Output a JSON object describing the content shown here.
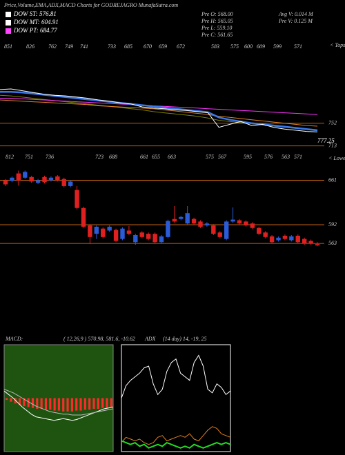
{
  "chart_data": [
    {
      "type": "line",
      "title": "Price,Volume,EMA,ADX,MACD Charts for GODREJAGRO MunafaSutra.com",
      "legend": [
        {
          "label": "DOW ST: 576.81",
          "color": "#ffffff"
        },
        {
          "label": "DOW MT: 604.91",
          "color": "#ffffff"
        },
        {
          "label": "DOW PT: 684.77",
          "color": "#ff44ff"
        }
      ],
      "info": [
        "Pre O: 568.00",
        "Pre H: 565.05",
        "Pre L: 559.10",
        "Pre C: 561.65",
        "Avg V: 0.014 M",
        "Pre V: 0.125 M"
      ],
      "top_labels": [
        851,
        826,
        762,
        749,
        741,
        733,
        685,
        670,
        659,
        672,
        583,
        575,
        600,
        609,
        599,
        571
      ],
      "side_label": "< Tops",
      "ylim": [
        709,
        881
      ],
      "yticks": [
        752,
        713
      ],
      "last_price": 777.25,
      "series": [
        {
          "color": "#808000",
          "values": [
            800,
            799,
            797,
            795,
            793,
            791,
            789,
            787,
            785,
            783,
            781,
            779,
            777,
            775,
            772,
            770,
            768,
            766,
            764,
            761,
            757,
            755,
            753,
            751,
            749,
            747,
            745,
            743,
            741,
            739
          ]
        },
        {
          "color": "#e08020",
          "values": [
            792,
            791,
            790,
            789,
            788,
            787,
            786,
            785,
            784,
            782,
            781,
            780,
            779,
            778,
            777,
            775,
            773,
            771,
            769,
            767,
            764,
            762,
            760,
            758,
            756,
            754,
            752,
            750,
            748,
            747
          ]
        },
        {
          "color": "#ff33ff",
          "values": [
            795,
            795,
            794,
            793,
            792,
            791,
            790,
            789,
            788,
            787,
            786,
            785,
            784,
            783,
            782,
            781,
            780,
            779,
            778,
            777,
            776,
            775,
            774,
            773,
            772,
            771,
            770,
            769,
            768,
            767
          ]
        },
        {
          "color": "#3a78e8",
          "values": [
            806,
            806,
            805,
            803,
            801,
            799,
            797,
            795,
            793,
            791,
            789,
            787,
            785,
            783,
            781,
            779,
            777,
            775,
            773,
            771,
            762,
            758,
            755,
            752,
            750,
            748,
            746,
            744,
            742,
            740
          ]
        },
        {
          "color": "#ffffff",
          "values": [
            810,
            811,
            808,
            805,
            802,
            800,
            799,
            797,
            795,
            792,
            790,
            787,
            785,
            780,
            778,
            777,
            775,
            774,
            772,
            770,
            745,
            750,
            755,
            748,
            750,
            745,
            742,
            740,
            738,
            737
          ]
        }
      ]
    },
    {
      "type": "candlestick",
      "top_labels": [
        812,
        751,
        736,
        723,
        688,
        661,
        655,
        663,
        575,
        567,
        595,
        576,
        563,
        571
      ],
      "side_label": "< Lowes",
      "ylim": [
        545,
        700
      ],
      "yticks": [
        661,
        592,
        563
      ],
      "up_color": "#2a5bd8",
      "down_color": "#e02020",
      "open": [
        661,
        660,
        671.6,
        665,
        666,
        657,
        666,
        661,
        667,
        663,
        652,
        646,
        618,
        591,
        578,
        586,
        583,
        584,
        570,
        583,
        565,
        580,
        578,
        578,
        565,
        573,
        601,
        601,
        594,
        601,
        597,
        591,
        591,
        580,
        570,
        597,
        599,
        597,
        594,
        587,
        580,
        574,
        568,
        575,
        568,
        575,
        570,
        567,
        562
      ],
      "high": [
        663,
        667,
        676,
        676,
        668,
        663,
        668,
        667,
        669,
        665,
        661,
        652,
        620,
        593,
        591,
        588,
        591,
        586,
        588,
        590,
        578,
        582,
        580,
        580,
        576,
        600,
        621,
        606,
        621,
        603,
        599,
        596,
        593,
        582,
        599,
        619,
        601,
        599,
        596,
        589,
        582,
        576,
        574,
        577,
        576,
        577,
        572,
        569,
        565
      ],
      "low": [
        652,
        658,
        652.5,
        663,
        657,
        655,
        656,
        659,
        659,
        650,
        650,
        616,
        587,
        562,
        570,
        571,
        581,
        565,
        568,
        576,
        561,
        571,
        568,
        563,
        563,
        571,
        595,
        599,
        592,
        592,
        587,
        589,
        576,
        571,
        568,
        595,
        592,
        589,
        585,
        576,
        571,
        563,
        566,
        568,
        566,
        563,
        561,
        561,
        559
      ],
      "close": [
        654.6,
        665,
        661,
        674,
        659,
        661,
        658,
        665,
        661,
        652,
        659,
        618,
        589,
        573,
        589,
        573,
        589,
        567,
        586,
        578,
        576,
        573,
        570,
        565,
        574,
        598,
        597,
        604,
        610,
        594,
        589,
        594,
        578,
        573,
        597,
        600,
        594,
        591,
        587,
        578,
        573,
        565,
        572,
        570,
        574,
        565,
        563,
        563,
        560
      ]
    },
    {
      "type": "macd",
      "title": "MACD:",
      "subtitle": "( 12,26,9 ) 570.98, 581.6, -10.62",
      "ylim": [
        -60,
        60
      ],
      "background": "#1e5410",
      "histogram": {
        "color": "#ff2a2a",
        "values": [
          -2,
          -4,
          -6,
          -8,
          -9,
          -10,
          -11,
          -12,
          -12,
          -13,
          -13,
          -14,
          -14,
          -15,
          -15,
          -15,
          -14,
          -14,
          -13,
          -13,
          -12,
          -12,
          -11,
          -11,
          -10
        ]
      },
      "series": [
        {
          "color": "#ffffff",
          "values": [
            8,
            4,
            0,
            -5,
            -10,
            -14,
            -18,
            -21,
            -22,
            -23,
            -24,
            -25,
            -24,
            -23,
            -24,
            -25,
            -24,
            -22,
            -20,
            -18,
            -16,
            -14,
            -12,
            -11,
            -10
          ]
        },
        {
          "color": "#bbbbbb",
          "values": [
            10,
            8,
            6,
            3,
            0,
            -3,
            -6,
            -9,
            -11,
            -13,
            -15,
            -16,
            -17,
            -18,
            -18,
            -19,
            -19,
            -19,
            -18,
            -17,
            -16,
            -15,
            -14,
            -13,
            -12
          ]
        }
      ]
    },
    {
      "type": "adx",
      "title": "ADX",
      "subtitle": "(14  day) 14,  -19,  25",
      "ylim": [
        0,
        60
      ],
      "background": "#000000",
      "series": [
        {
          "color": "#ffffff",
          "values": [
            30,
            37,
            40,
            42,
            44,
            47,
            48,
            38,
            32,
            35,
            45,
            50,
            52,
            44,
            42,
            40,
            50,
            54,
            48,
            35,
            33,
            38,
            36,
            32,
            34
          ]
        },
        {
          "color": "#e08020",
          "values": [
            5,
            8,
            7,
            6,
            7,
            5,
            4,
            5,
            8,
            9,
            6,
            7,
            8,
            9,
            8,
            10,
            7,
            6,
            9,
            12,
            14,
            13,
            10,
            9,
            8
          ]
        },
        {
          "color": "#22dd22",
          "values": [
            6,
            5,
            4,
            5,
            3,
            4,
            2,
            3,
            4,
            3,
            5,
            4,
            3,
            2,
            3,
            2,
            4,
            3,
            2,
            3,
            4,
            5,
            4,
            5,
            4
          ]
        }
      ]
    }
  ]
}
